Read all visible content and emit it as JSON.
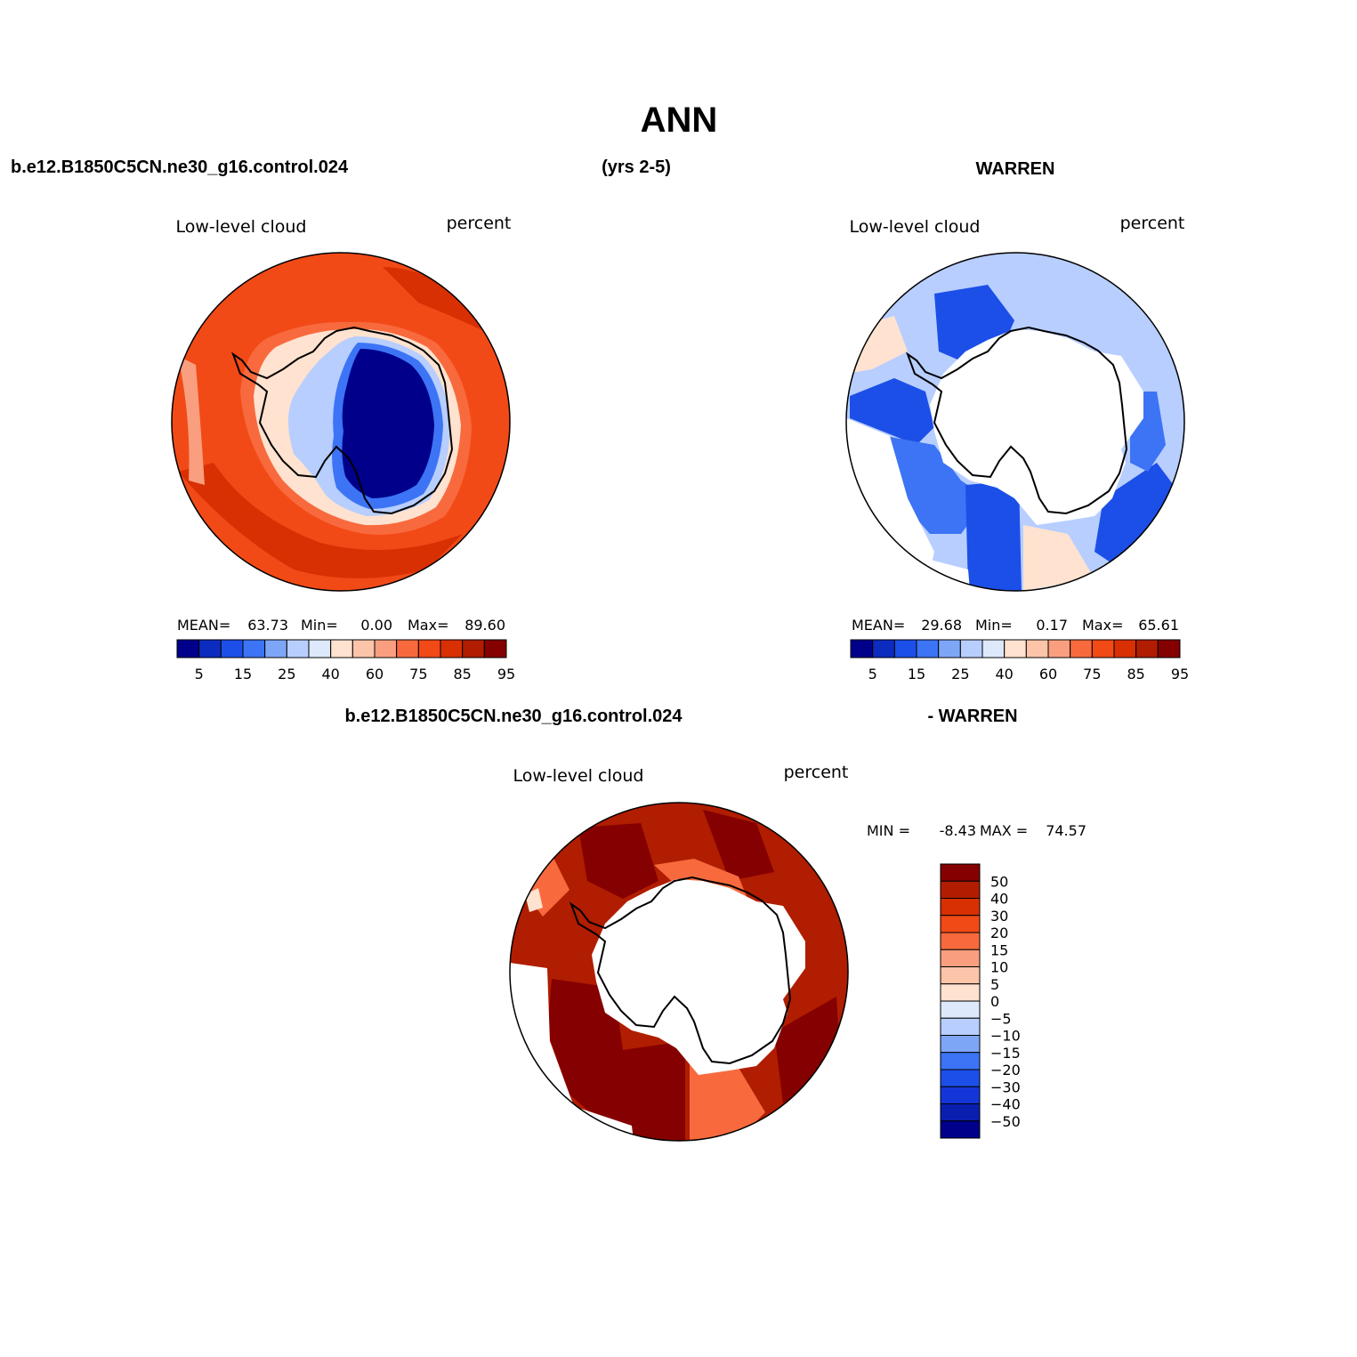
{
  "figure": {
    "title": "ANN",
    "case_name": "b.e12.B1850C5CN.ne30_g16.control.024",
    "years": "(yrs 2-5)",
    "obs_name": "WARREN",
    "diff_case": "b.e12.B1850C5CN.ne30_g16.control.024",
    "diff_obs": "- WARREN"
  },
  "colors": {
    "abs_scale": [
      "#00008b",
      "#0c2cbf",
      "#1c4fe8",
      "#3c74f5",
      "#7ea6f7",
      "#b7ceff",
      "#dde9fa",
      "#ffe2cf",
      "#fcc4a8",
      "#f99f7f",
      "#f86a3d",
      "#f24a17",
      "#d83003",
      "#b01d00",
      "#850000"
    ],
    "diff_scale": [
      "#00008b",
      "#0a1fb0",
      "#1436d8",
      "#1c4fe8",
      "#3c74f5",
      "#7ea6f7",
      "#b7ceff",
      "#dde9fa",
      "#ffe2cf",
      "#fcc4a8",
      "#f99f7f",
      "#f86a3d",
      "#f24a17",
      "#d83003",
      "#b01d00",
      "#850000"
    ]
  },
  "chart_data": [
    {
      "type": "heatmap",
      "projection": "south polar stereographic",
      "title": "Low-level cloud",
      "units": "percent",
      "stats": {
        "mean_label": "MEAN=",
        "mean": "63.73",
        "min_label": "Min=",
        "min": "0.00",
        "max_label": "Max=",
        "max": "89.60"
      },
      "levels": [
        5,
        10,
        15,
        20,
        25,
        30,
        40,
        50,
        60,
        70,
        75,
        80,
        85,
        90,
        95
      ],
      "colorbar_labels": [
        "5",
        "15",
        "25",
        "40",
        "60",
        "75",
        "85",
        "95"
      ]
    },
    {
      "type": "heatmap",
      "projection": "south polar stereographic",
      "title": "Low-level cloud",
      "units": "percent",
      "stats": {
        "mean_label": "MEAN=",
        "mean": "29.68",
        "min_label": "Min=",
        "min": "0.17",
        "max_label": "Max=",
        "max": "65.61"
      },
      "levels": [
        5,
        10,
        15,
        20,
        25,
        30,
        40,
        50,
        60,
        70,
        75,
        80,
        85,
        90,
        95
      ],
      "colorbar_labels": [
        "5",
        "15",
        "25",
        "40",
        "60",
        "75",
        "85",
        "95"
      ]
    },
    {
      "type": "heatmap",
      "projection": "south polar stereographic",
      "title": "Low-level cloud",
      "units": "percent",
      "stats": {
        "min_label": "MIN =",
        "min": "-8.43",
        "max_label": "MAX =",
        "max": "74.57"
      },
      "levels": [
        -50,
        -40,
        -30,
        -20,
        -15,
        -10,
        -5,
        0,
        5,
        10,
        15,
        20,
        30,
        40,
        50
      ],
      "colorbar_labels": [
        "50",
        "40",
        "30",
        "20",
        "15",
        "10",
        "5",
        "0",
        "−5",
        "−10",
        "−15",
        "−20",
        "−30",
        "−40",
        "−50"
      ]
    }
  ]
}
